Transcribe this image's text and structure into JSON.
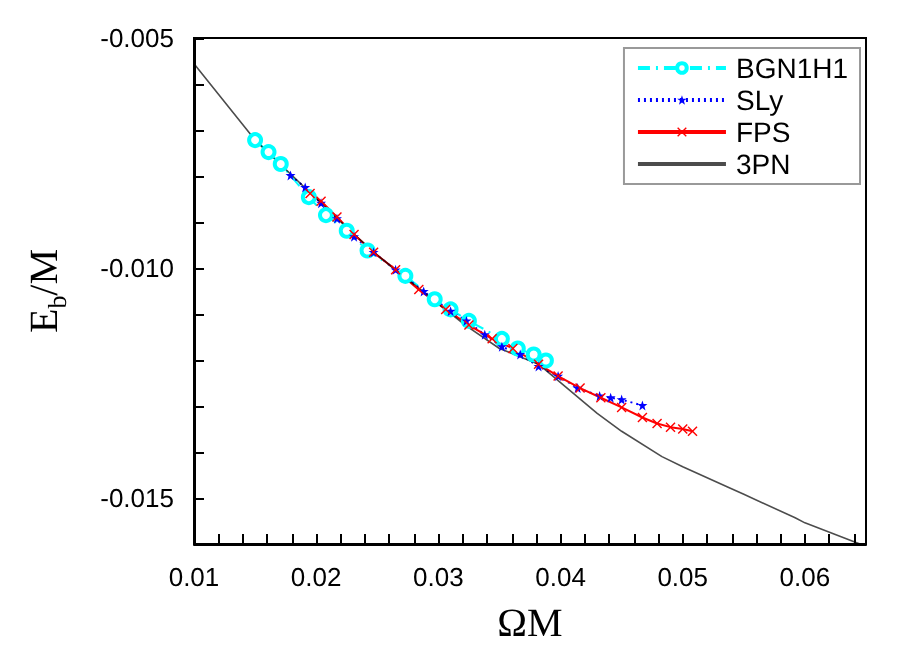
{
  "chart_data": {
    "type": "line",
    "xlabel": "ΩM",
    "ylabel": "E$_{b}$/M",
    "xlim": [
      0.01,
      0.065
    ],
    "ylim": [
      -0.016,
      -0.005
    ],
    "xticks": [
      0.01,
      {
        "value": 0.012,
        "label": null
      },
      {
        "value": 0.014,
        "label": null
      },
      {
        "value": 0.016,
        "label": null
      },
      {
        "value": 0.018,
        "label": null
      },
      0.02,
      {
        "value": 0.022,
        "label": null
      },
      {
        "value": 0.024,
        "label": null
      },
      {
        "value": 0.026,
        "label": null
      },
      {
        "value": 0.028,
        "label": null
      },
      0.03,
      {
        "value": 0.032,
        "label": null
      },
      {
        "value": 0.034,
        "label": null
      },
      {
        "value": 0.036,
        "label": null
      },
      {
        "value": 0.038,
        "label": null
      },
      0.04,
      {
        "value": 0.042,
        "label": null
      },
      {
        "value": 0.044,
        "label": null
      },
      {
        "value": 0.046,
        "label": null
      },
      {
        "value": 0.048,
        "label": null
      },
      0.05,
      {
        "value": 0.052,
        "label": null
      },
      {
        "value": 0.054,
        "label": null
      },
      {
        "value": 0.056,
        "label": null
      },
      {
        "value": 0.058,
        "label": null
      },
      0.06,
      {
        "value": 0.062,
        "label": null
      },
      {
        "value": 0.064,
        "label": null
      }
    ],
    "yticks": [
      {
        "value": -0.016,
        "label": null
      },
      {
        "value": -0.015,
        "label": "-0.015"
      },
      {
        "value": -0.014,
        "label": null
      },
      {
        "value": -0.013,
        "label": null
      },
      {
        "value": -0.012,
        "label": null
      },
      {
        "value": -0.011,
        "label": null
      },
      {
        "value": -0.01,
        "label": "-0.010"
      },
      {
        "value": -0.009,
        "label": null
      },
      {
        "value": -0.008,
        "label": null
      },
      {
        "value": -0.007,
        "label": null
      },
      {
        "value": -0.006,
        "label": null
      },
      {
        "value": -0.005,
        "label": "-0.005"
      }
    ],
    "grid": false,
    "legend": "top right",
    "series": [
      {
        "name": "BGN1H1",
        "color": "#00ffff",
        "marker": "circle",
        "line_style": "dashed",
        "x": [
          0.015,
          0.0161,
          0.0171,
          0.0194,
          0.0208,
          0.0225,
          0.0242,
          0.0273,
          0.0297,
          0.031,
          0.0325,
          0.0352,
          0.0365,
          0.0378,
          0.0388
        ],
        "values": [
          -0.00722,
          -0.00748,
          -0.00774,
          -0.00846,
          -0.00885,
          -0.00919,
          -0.00962,
          -0.01017,
          -0.01068,
          -0.0109,
          -0.01115,
          -0.01154,
          -0.01175,
          -0.01188,
          -0.01201
        ]
      },
      {
        "name": "SLy",
        "color": "#0000ff",
        "marker": "star",
        "line_style": "dotted",
        "x": [
          0.0179,
          0.0191,
          0.0204,
          0.0217,
          0.0231,
          0.0247,
          0.0265,
          0.0288,
          0.031,
          0.0323,
          0.0338,
          0.0352,
          0.0367,
          0.0382,
          0.0398,
          0.0414,
          0.0432,
          0.0441,
          0.045,
          0.0467
        ],
        "values": [
          -0.00799,
          -0.00825,
          -0.00859,
          -0.00893,
          -0.00932,
          -0.00966,
          -0.01004,
          -0.01051,
          -0.01094,
          -0.01115,
          -0.01145,
          -0.01171,
          -0.01188,
          -0.01214,
          -0.01235,
          -0.01261,
          -0.01278,
          -0.01282,
          -0.01286,
          -0.01299
        ]
      },
      {
        "name": "FPS",
        "color": "#ff0000",
        "marker": "cross",
        "line_style": "solid",
        "x": [
          0.0195,
          0.0204,
          0.0217,
          0.0231,
          0.0247,
          0.0265,
          0.0284,
          0.0306,
          0.0325,
          0.0344,
          0.0361,
          0.0382,
          0.0398,
          0.0416,
          0.0433,
          0.045,
          0.0467,
          0.0479,
          0.049,
          0.05,
          0.0508
        ],
        "values": [
          -0.00838,
          -0.00855,
          -0.00889,
          -0.00927,
          -0.00966,
          -0.01004,
          -0.01047,
          -0.0109,
          -0.01124,
          -0.01154,
          -0.01175,
          -0.01209,
          -0.01235,
          -0.01261,
          -0.01282,
          -0.01303,
          -0.01325,
          -0.01338,
          -0.01346,
          -0.0135,
          -0.01355
        ]
      },
      {
        "name": "3PN",
        "color": "#000000",
        "marker": "none",
        "line_style": "solid",
        "x": [
          0.01,
          0.015,
          0.02,
          0.0231,
          0.025,
          0.03,
          0.0322,
          0.035,
          0.0382,
          0.04,
          0.043,
          0.045,
          0.0483,
          0.05,
          0.0539,
          0.055,
          0.0592,
          0.06,
          0.0645
        ],
        "values": [
          -0.00556,
          -0.00722,
          -0.00849,
          -0.00927,
          -0.00972,
          -0.01078,
          -0.01124,
          -0.01175,
          -0.01209,
          -0.01249,
          -0.01316,
          -0.01355,
          -0.0141,
          -0.01432,
          -0.01479,
          -0.01492,
          -0.01543,
          -0.01554,
          -0.016
        ]
      }
    ]
  }
}
